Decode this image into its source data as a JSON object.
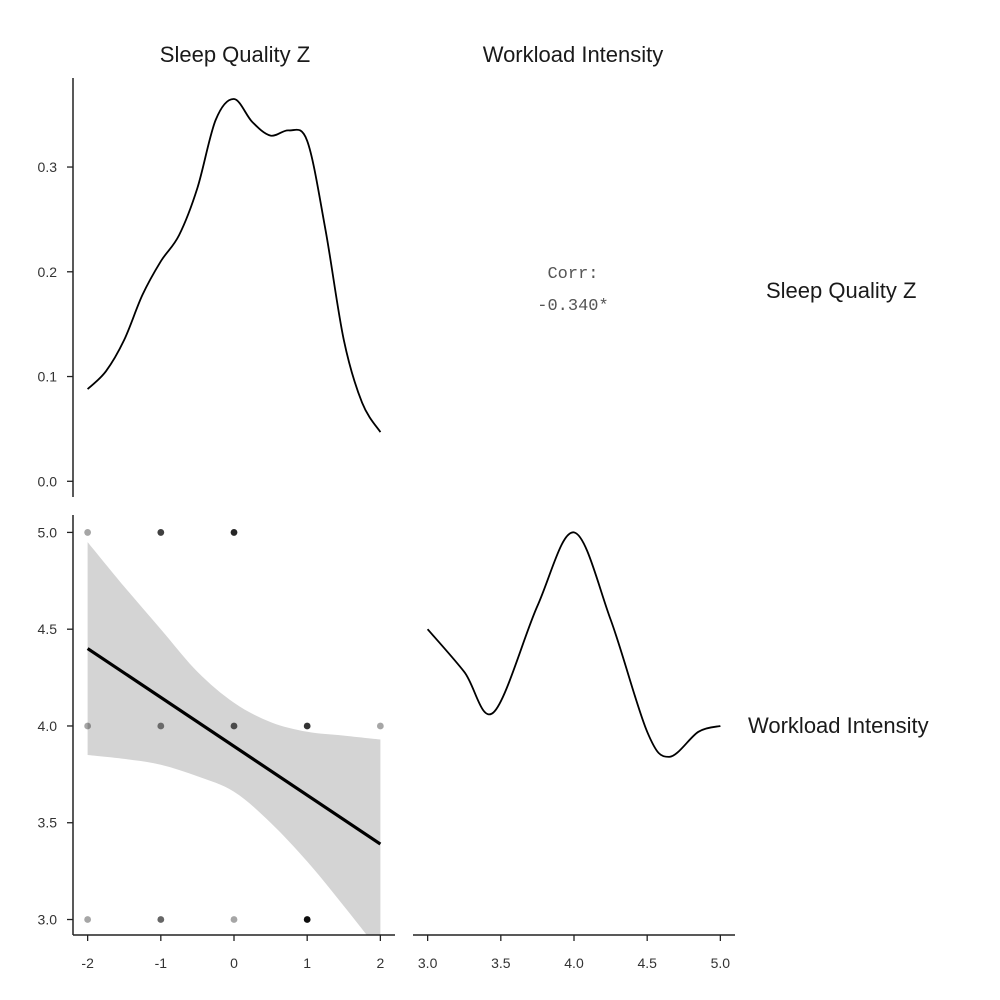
{
  "chart_data": {
    "type": "pairs",
    "variables": [
      "Sleep Quality Z",
      "Workload Intensity"
    ],
    "column_strip_labels": [
      "Sleep Quality Z",
      "Workload Intensity"
    ],
    "row_strip_labels": [
      "Sleep Quality Z",
      "Workload Intensity"
    ],
    "correlation": {
      "label": "Corr:",
      "value": "-0.340*"
    },
    "density_sleep": {
      "type": "line",
      "x": [
        -2.0,
        -1.75,
        -1.5,
        -1.25,
        -1.0,
        -0.75,
        -0.5,
        -0.25,
        0.0,
        0.25,
        0.5,
        0.75,
        1.0,
        1.25,
        1.5,
        1.75,
        2.0
      ],
      "y": [
        0.088,
        0.105,
        0.135,
        0.178,
        0.21,
        0.235,
        0.28,
        0.345,
        0.365,
        0.343,
        0.33,
        0.335,
        0.325,
        0.24,
        0.135,
        0.075,
        0.047
      ],
      "xlim": [
        -2.2,
        2.2
      ],
      "ylim": [
        -0.015,
        0.385
      ],
      "y_ticks": [
        "0.0",
        "0.1",
        "0.2",
        "0.3"
      ],
      "y_tick_values": [
        0.0,
        0.1,
        0.2,
        0.3
      ]
    },
    "density_workload": {
      "type": "line",
      "x": [
        3.0,
        3.25,
        3.45,
        3.75,
        4.0,
        4.25,
        4.5,
        4.65,
        4.85,
        5.0
      ],
      "y": [
        0.0,
        0.0,
        0.0,
        0.0,
        0.0,
        0.0,
        0.0,
        0.0,
        0.0,
        0.0
      ],
      "display_y": [
        4.5,
        4.28,
        4.07,
        4.62,
        5.0,
        4.55,
        3.97,
        3.84,
        3.97,
        4.0
      ]
    },
    "scatter": {
      "type": "scatter",
      "x_label": "Sleep Quality Z",
      "y_label": "Workload Intensity",
      "points": [
        {
          "x": -2,
          "y": 5.0,
          "alpha": 0.35
        },
        {
          "x": -1,
          "y": 5.0,
          "alpha": 0.75
        },
        {
          "x": 0,
          "y": 5.0,
          "alpha": 0.85
        },
        {
          "x": -2,
          "y": 4.0,
          "alpha": 0.35
        },
        {
          "x": -1,
          "y": 4.0,
          "alpha": 0.5
        },
        {
          "x": 0,
          "y": 4.0,
          "alpha": 0.65
        },
        {
          "x": 1,
          "y": 4.0,
          "alpha": 0.8
        },
        {
          "x": 2,
          "y": 4.0,
          "alpha": 0.35
        },
        {
          "x": -2,
          "y": 3.0,
          "alpha": 0.35
        },
        {
          "x": -1,
          "y": 3.0,
          "alpha": 0.6
        },
        {
          "x": 0,
          "y": 3.0,
          "alpha": 0.35
        },
        {
          "x": 1,
          "y": 3.0,
          "alpha": 0.95
        }
      ],
      "fit_line": {
        "x": [
          -2,
          2
        ],
        "y": [
          4.4,
          3.39
        ]
      },
      "confidence_band": {
        "x": [
          -2.0,
          -1.5,
          -1.0,
          -0.5,
          0.0,
          0.5,
          1.0,
          1.5,
          2.0
        ],
        "upper": [
          4.95,
          4.72,
          4.5,
          4.28,
          4.12,
          4.02,
          3.97,
          3.95,
          3.93
        ],
        "lower": [
          3.85,
          3.83,
          3.8,
          3.74,
          3.66,
          3.5,
          3.3,
          3.07,
          2.83
        ]
      },
      "xlim": [
        -2.2,
        2.2
      ],
      "ylim": [
        2.92,
        5.09
      ],
      "x_ticks": [
        "-2",
        "-1",
        "0",
        "1",
        "2"
      ],
      "x_tick_values": [
        -2,
        -1,
        0,
        1,
        2
      ],
      "y_ticks": [
        "3.0",
        "3.5",
        "4.0",
        "4.5",
        "5.0"
      ],
      "y_tick_values": [
        3.0,
        3.5,
        4.0,
        4.5,
        5.0
      ]
    },
    "workload_x_axis": {
      "xlim": [
        2.9,
        5.1
      ],
      "x_ticks": [
        "3.0",
        "3.5",
        "4.0",
        "4.5",
        "5.0"
      ],
      "x_tick_values": [
        3.0,
        3.5,
        4.0,
        4.5,
        5.0
      ]
    },
    "grid": false,
    "colors": {
      "line": "#000000",
      "band": "#d4d4d4",
      "point": "#000000",
      "axis": "#222222"
    }
  }
}
